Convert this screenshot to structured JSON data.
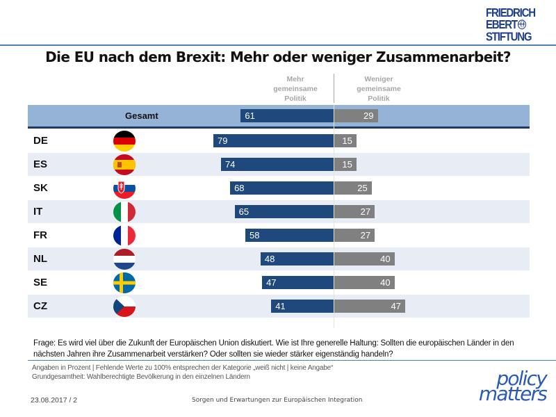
{
  "logo_fes": {
    "line1": "FRIEDRICH",
    "line2": "EBERT",
    "line3": "STIFTUNG",
    "icon": "globe-icon"
  },
  "title": "Die EU nach dem Brexit: Mehr oder weniger Zusammenarbeit?",
  "column_headers": {
    "left": [
      "Mehr",
      "gemeinsame",
      "Politik"
    ],
    "right": [
      "Weniger",
      "gemeinsame",
      "Politik"
    ]
  },
  "colors": {
    "more": "#1f497d",
    "less": "#808080",
    "total_band": "#95b3d7",
    "shaded_row": "#e8ecf5"
  },
  "chart_data": {
    "type": "bar",
    "subtype": "diverging-horizontal",
    "title": "Die EU nach dem Brexit: Mehr oder weniger Zusammenarbeit?",
    "categories": [
      "Gesamt",
      "DE",
      "ES",
      "SK",
      "IT",
      "FR",
      "NL",
      "SE",
      "CZ"
    ],
    "series": [
      {
        "name": "Mehr gemeinsame Politik",
        "values": [
          61,
          79,
          74,
          68,
          65,
          58,
          48,
          47,
          41
        ]
      },
      {
        "name": "Weniger gemeinsame Politik",
        "values": [
          29,
          15,
          15,
          25,
          27,
          27,
          40,
          40,
          47
        ]
      }
    ],
    "unit": "Prozent",
    "xlim": [
      -100,
      100
    ],
    "grid": false
  },
  "rows": [
    {
      "label": "Gesamt",
      "flag": null
    },
    {
      "label": "DE",
      "flag": "flag-germany-icon"
    },
    {
      "label": "ES",
      "flag": "flag-spain-icon"
    },
    {
      "label": "SK",
      "flag": "flag-slovakia-icon"
    },
    {
      "label": "IT",
      "flag": "flag-italy-icon"
    },
    {
      "label": "FR",
      "flag": "flag-france-icon"
    },
    {
      "label": "NL",
      "flag": "flag-netherlands-icon"
    },
    {
      "label": "SE",
      "flag": "flag-sweden-icon"
    },
    {
      "label": "CZ",
      "flag": "flag-czechia-icon"
    }
  ],
  "question": "Frage: Es wird viel über die Zukunft der Europäischen Union diskutiert. Wie ist Ihre generelle Haltung: Sollten die europäischen Länder in den nächsten Jahren ihre Zusammenarbeit verstärken? Oder sollten sie wieder stärker eigenständig handeln?",
  "notes": [
    "Angaben in Prozent | Fehlende Werte zu 100% entsprechen der Kategorie „weiß nicht | keine Angabe“",
    "Grundgesamtheit: Wahlberechtigte Bevölkerung in den einzelnen Ländern"
  ],
  "footer": {
    "date_page": "23.08.2017 / 2",
    "center": "Sorgen und Erwartungen zur Europäischen Integration"
  },
  "logo_pm": {
    "line1": "policy",
    "line2": "matters"
  }
}
